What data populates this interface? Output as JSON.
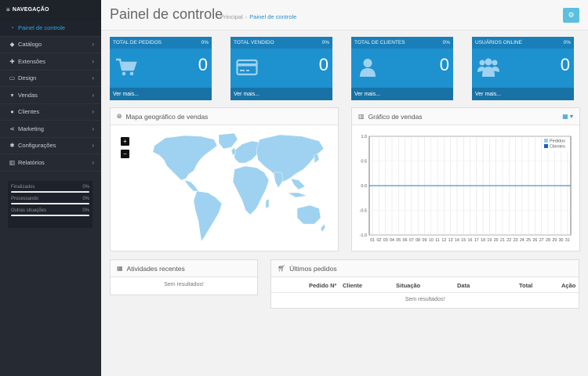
{
  "sidebar": {
    "header": "NAVEGAÇÃO",
    "items": [
      {
        "label": "Painel de controle",
        "icon": "dashboard-icon",
        "active": true,
        "chevron": false
      },
      {
        "label": "Catálogo",
        "icon": "tags-icon",
        "chevron": true
      },
      {
        "label": "Extensões",
        "icon": "puzzle-icon",
        "chevron": true
      },
      {
        "label": "Design",
        "icon": "monitor-icon",
        "chevron": true
      },
      {
        "label": "Vendas",
        "icon": "cart-icon",
        "chevron": true
      },
      {
        "label": "Clientes",
        "icon": "user-icon",
        "chevron": true
      },
      {
        "label": "Marketing",
        "icon": "share-icon",
        "chevron": true
      },
      {
        "label": "Configurações",
        "icon": "cog-icon",
        "chevron": true
      },
      {
        "label": "Relatórios",
        "icon": "bar-chart-icon",
        "chevron": true
      }
    ],
    "stats": [
      {
        "label": "Finalizados",
        "value": "0%"
      },
      {
        "label": "Processando",
        "value": "0%"
      },
      {
        "label": "Outras situações",
        "value": "0%"
      }
    ]
  },
  "header": {
    "title": "Painel de controle",
    "breadcrumb": [
      "Principal",
      "Painel de controle"
    ],
    "separator": "›"
  },
  "tiles": [
    {
      "title": "TOTAL DE PEDIDOS",
      "percent": "0%",
      "value": "0",
      "link": "Ver mais...",
      "icon": "cart-icon"
    },
    {
      "title": "TOTAL VENDIDO",
      "percent": "0%",
      "value": "0",
      "link": "Ver mais...",
      "icon": "credit-card-icon"
    },
    {
      "title": "TOTAL DE CLIENTES",
      "percent": "0%",
      "value": "0",
      "link": "Ver mais...",
      "icon": "user-icon"
    },
    {
      "title": "USUÁRIOS ONLINE",
      "percent": "0%",
      "value": "0",
      "link": "Ver mais...",
      "icon": "users-icon"
    }
  ],
  "map_panel": {
    "title": "Mapa geográfico de vendas",
    "zoom_in": "+",
    "zoom_out": "−"
  },
  "chart_panel": {
    "title": "Gráfico de vendas"
  },
  "activity_panel": {
    "title": "Atividades recentes",
    "empty": "Sem resultados!"
  },
  "orders_panel": {
    "title": "Últimos pedidos",
    "columns": [
      "Pedido Nº",
      "Cliente",
      "Situação",
      "Data",
      "Total",
      "Ação"
    ],
    "empty": "Sem resultados!"
  },
  "colors": {
    "accent": "#1e91cf",
    "sidebar": "#252a33",
    "series_pedidos": "#9bcbef",
    "series_clientes": "#1565c0"
  },
  "chart_data": {
    "type": "line",
    "x": [
      "01",
      "02",
      "03",
      "04",
      "05",
      "06",
      "07",
      "08",
      "09",
      "10",
      "11",
      "12",
      "13",
      "14",
      "15",
      "16",
      "17",
      "18",
      "19",
      "20",
      "21",
      "22",
      "23",
      "24",
      "25",
      "26",
      "27",
      "28",
      "29",
      "30",
      "31"
    ],
    "yticks": [
      "1.0",
      "0.5",
      "0.0",
      "-0.5",
      "-1.0"
    ],
    "ylim": [
      -1,
      1
    ],
    "series": [
      {
        "name": "Pedidos",
        "values": [
          0,
          0,
          0,
          0,
          0,
          0,
          0,
          0,
          0,
          0,
          0,
          0,
          0,
          0,
          0,
          0,
          0,
          0,
          0,
          0,
          0,
          0,
          0,
          0,
          0,
          0,
          0,
          0,
          0,
          0,
          0
        ]
      },
      {
        "name": "Clientes",
        "values": [
          0,
          0,
          0,
          0,
          0,
          0,
          0,
          0,
          0,
          0,
          0,
          0,
          0,
          0,
          0,
          0,
          0,
          0,
          0,
          0,
          0,
          0,
          0,
          0,
          0,
          0,
          0,
          0,
          0,
          0,
          0
        ]
      }
    ],
    "legend": "top-right",
    "grid": true
  }
}
